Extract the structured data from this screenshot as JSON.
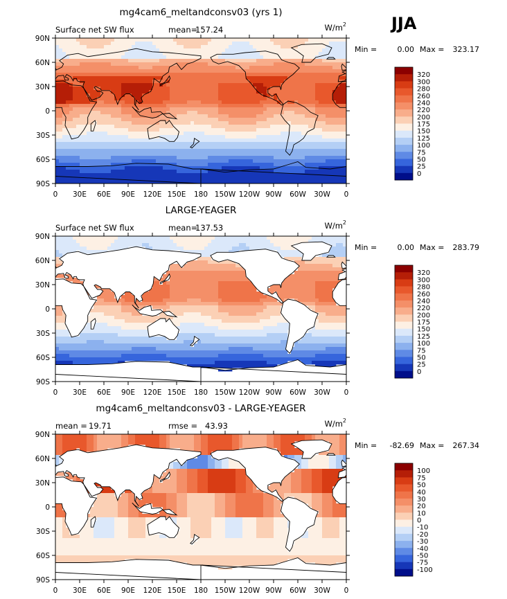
{
  "season": "JJA",
  "chart_data": [
    {
      "type": "heatmap",
      "title": "mg4cam6_meltandconsv03 (yrs 1)",
      "variable": "Surface net SW flux",
      "stat_left_label": "mean=",
      "stat_left_value": "157.24",
      "units": "W/m",
      "units_sup": "2",
      "min_label": "Min =",
      "min_value": "0.00",
      "max_label": "Max =",
      "max_value": "323.17",
      "x_ticks": [
        "0",
        "30E",
        "60E",
        "90E",
        "120E",
        "150E",
        "180",
        "150W",
        "120W",
        "90W",
        "60W",
        "30W",
        "0"
      ],
      "y_ticks": [
        "90N",
        "60N",
        "30N",
        "0",
        "30S",
        "60S",
        "90S"
      ],
      "levels": [
        "320",
        "300",
        "280",
        "260",
        "240",
        "220",
        "200",
        "175",
        "150",
        "125",
        "100",
        "75",
        "50",
        "25",
        "0"
      ],
      "colors": [
        "#8b0000",
        "#b51e07",
        "#d83c14",
        "#e8582c",
        "#ef7449",
        "#f48f68",
        "#f8ad8b",
        "#fbd0b5",
        "#fdf0e4",
        "#dbe8fa",
        "#b4cff5",
        "#8cb1ee",
        "#5f8ae5",
        "#3665dc",
        "#1637b8",
        "#000e8a"
      ],
      "land_masked": false
    },
    {
      "type": "heatmap",
      "title": "LARGE-YEAGER",
      "variable": "Surface net SW flux",
      "stat_left_label": "mean=",
      "stat_left_value": "137.53",
      "units": "W/m",
      "units_sup": "2",
      "min_label": "Min =",
      "min_value": "0.00",
      "max_label": "Max =",
      "max_value": "283.79",
      "x_ticks": [
        "0",
        "30E",
        "60E",
        "90E",
        "120E",
        "150E",
        "180",
        "150W",
        "120W",
        "90W",
        "60W",
        "30W",
        "0"
      ],
      "y_ticks": [
        "90N",
        "60N",
        "30N",
        "0",
        "30S",
        "60S",
        "90S"
      ],
      "levels": [
        "320",
        "300",
        "280",
        "260",
        "240",
        "220",
        "200",
        "175",
        "150",
        "125",
        "100",
        "75",
        "50",
        "25",
        "0"
      ],
      "colors": [
        "#8b0000",
        "#b51e07",
        "#d83c14",
        "#e8582c",
        "#ef7449",
        "#f48f68",
        "#f8ad8b",
        "#fbd0b5",
        "#fdf0e4",
        "#dbe8fa",
        "#b4cff5",
        "#8cb1ee",
        "#5f8ae5",
        "#3665dc",
        "#1637b8",
        "#000e8a"
      ],
      "land_masked": true
    },
    {
      "type": "heatmap",
      "title": "mg4cam6_meltandconsv03 - LARGE-YEAGER",
      "stat_left_label": "mean =",
      "stat_left_value": "19.71",
      "stat_mid_label": "rmse =",
      "stat_mid_value": "43.93",
      "units": "W/m",
      "units_sup": "2",
      "min_label": "Min =",
      "min_value": "-82.69",
      "max_label": "Max =",
      "max_value": "267.34",
      "x_ticks": [
        "0",
        "30E",
        "60E",
        "90E",
        "120E",
        "150E",
        "180",
        "150W",
        "120W",
        "90W",
        "60W",
        "30W",
        "0"
      ],
      "y_ticks": [
        "90N",
        "60N",
        "30N",
        "0",
        "30S",
        "60S",
        "90S"
      ],
      "levels": [
        "100",
        "75",
        "50",
        "40",
        "30",
        "20",
        "10",
        "0",
        "-10",
        "-20",
        "-30",
        "-40",
        "-50",
        "-75",
        "-100"
      ],
      "colors": [
        "#8b0000",
        "#b51e07",
        "#d83c14",
        "#e8582c",
        "#ef7449",
        "#f48f68",
        "#f8ad8b",
        "#fbd0b5",
        "#fdf0e4",
        "#dbe8fa",
        "#b4cff5",
        "#8cb1ee",
        "#5f8ae5",
        "#3665dc",
        "#1637b8",
        "#000e8a"
      ],
      "land_masked": true
    }
  ]
}
